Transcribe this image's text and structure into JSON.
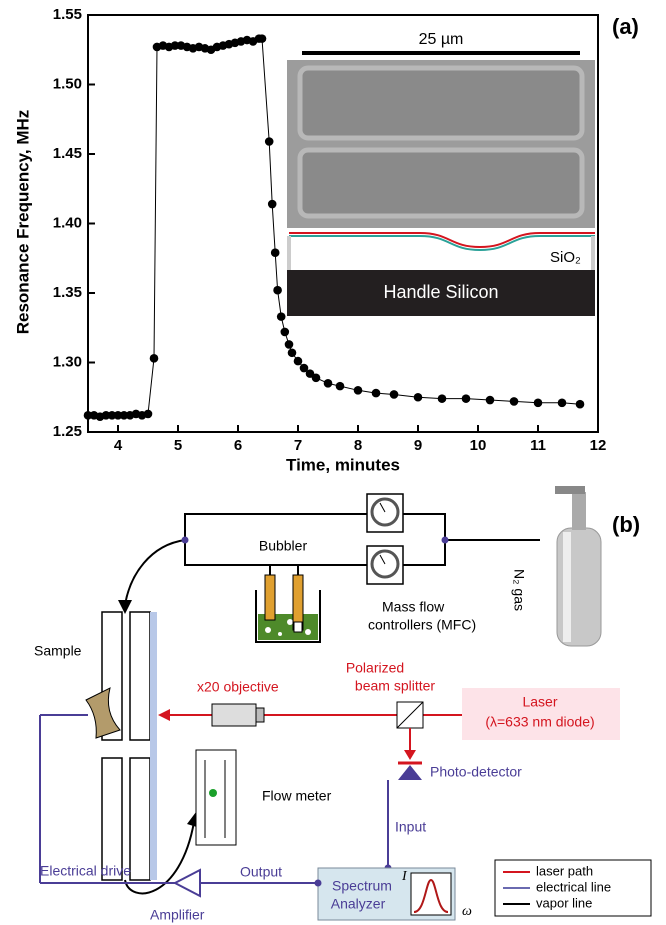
{
  "chart_data": {
    "type": "line",
    "label": "(a)",
    "xlabel": "Time, minutes",
    "ylabel": "Resonance Frequency, MHz",
    "xlim": [
      3.5,
      12
    ],
    "xticks": [
      4,
      5,
      6,
      7,
      8,
      9,
      10,
      11,
      12
    ],
    "ylim": [
      1.25,
      1.55
    ],
    "yticks": [
      1.25,
      {
        "value": 1.3,
        "label": "1.30"
      },
      1.35,
      {
        "value": 1.4,
        "label": "1.40"
      },
      1.45,
      {
        "value": 1.5,
        "label": "1.50"
      },
      1.55
    ],
    "markers": true,
    "color": "#000000",
    "x": [
      3.5,
      3.6,
      3.7,
      3.8,
      3.9,
      4.0,
      4.1,
      4.2,
      4.3,
      4.4,
      4.5,
      4.6,
      4.65,
      4.75,
      4.85,
      4.95,
      5.05,
      5.15,
      5.25,
      5.35,
      5.45,
      5.55,
      5.65,
      5.75,
      5.85,
      5.95,
      6.05,
      6.15,
      6.25,
      6.35,
      6.4,
      6.52,
      6.57,
      6.62,
      6.66,
      6.72,
      6.78,
      6.85,
      6.9,
      7.0,
      7.1,
      7.2,
      7.3,
      7.5,
      7.7,
      8.0,
      8.3,
      8.6,
      9.0,
      9.4,
      9.8,
      10.2,
      10.6,
      11.0,
      11.4,
      11.7
    ],
    "values": [
      1.262,
      1.262,
      1.261,
      1.262,
      1.262,
      1.262,
      1.262,
      1.262,
      1.263,
      1.262,
      1.263,
      1.303,
      1.527,
      1.528,
      1.527,
      1.528,
      1.528,
      1.527,
      1.526,
      1.527,
      1.526,
      1.525,
      1.527,
      1.528,
      1.529,
      1.53,
      1.531,
      1.532,
      1.531,
      1.533,
      1.533,
      1.459,
      1.414,
      1.379,
      1.352,
      1.333,
      1.322,
      1.313,
      1.307,
      1.301,
      1.296,
      1.292,
      1.289,
      1.285,
      1.283,
      1.28,
      1.278,
      1.277,
      1.275,
      1.274,
      1.274,
      1.273,
      1.272,
      1.271,
      1.271,
      1.27
    ],
    "inset": {
      "scale_bar": "25 µm",
      "layer": "SiO₂",
      "substrate": "Handle Silicon"
    }
  },
  "diagram": {
    "label": "(b)",
    "bubbler": "Bubbler",
    "mfc": [
      "Mass flow",
      "controllers (MFC)"
    ],
    "gas": "N₂ gas",
    "sample": "Sample",
    "objective": "x20 objective",
    "splitter": [
      "Polarized",
      "beam splitter"
    ],
    "laser": [
      "Laser",
      "(λ=633 nm diode)"
    ],
    "detector": "Photo-detector",
    "flow_meter": "Flow meter",
    "input": "Input",
    "output": "Output",
    "drive": "Electrical drive",
    "amplifier": "Amplifier",
    "analyzer": [
      "Spectrum",
      "Analyzer"
    ],
    "axis_i": "I",
    "axis_w": "ω",
    "legend": [
      "laser path",
      "electrical line",
      "vapor line"
    ]
  }
}
